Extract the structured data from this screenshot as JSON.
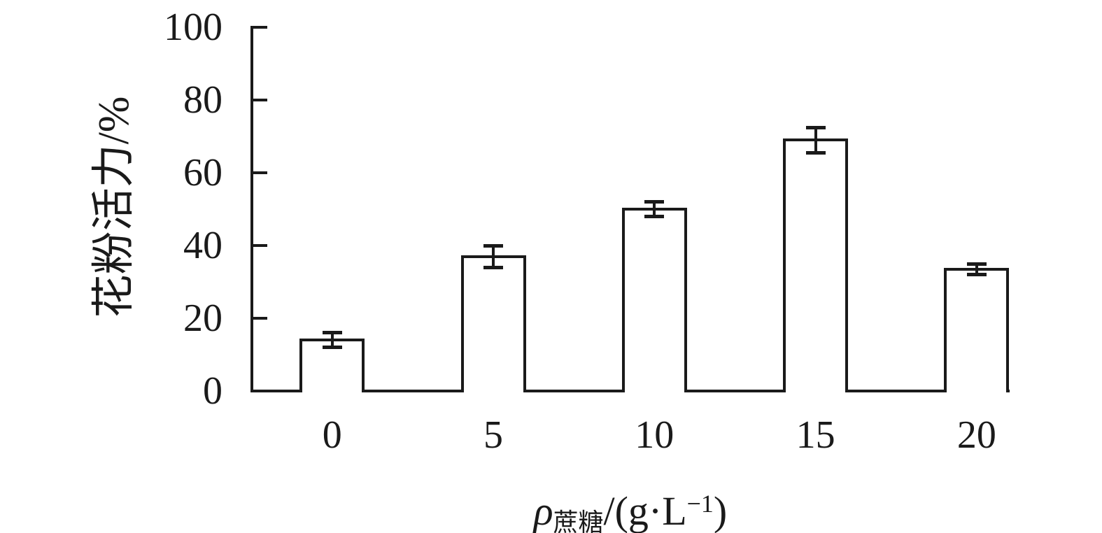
{
  "figure": {
    "background": "#ffffff",
    "ink_color": "#1a1a1a"
  },
  "chart_data": {
    "type": "bar",
    "title": "",
    "categories": [
      "0",
      "5",
      "10",
      "15",
      "20"
    ],
    "values": [
      14,
      37,
      50,
      69,
      33.5
    ],
    "error_bars": [
      2,
      3,
      2,
      3.5,
      1.5
    ],
    "ylabel": "花粉活力/%",
    "xlabel_plain": "ρ蔗糖/(g·L−1)",
    "xlabel_parts": {
      "rho": "ρ",
      "subscript": "蔗糖",
      "mid": "/(g·L",
      "superscript": "−1",
      "end": ")"
    },
    "ylim": [
      0,
      100
    ],
    "yticks": [
      0,
      20,
      40,
      60,
      80,
      100
    ],
    "grid": false,
    "legend": false,
    "bar_fill": "#ffffff",
    "bar_edge": "#1a1a1a"
  }
}
